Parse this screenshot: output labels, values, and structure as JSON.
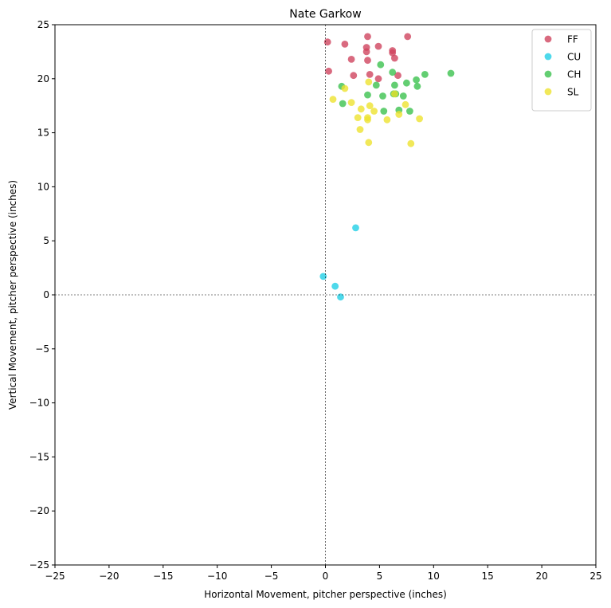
{
  "chart_data": {
    "type": "scatter",
    "title": "Nate Garkow",
    "xlabel": "Horizontal Movement, pitcher perspective (inches)",
    "ylabel": "Vertical Movement, pitcher perspective (inches)",
    "xlim": [
      -25,
      25
    ],
    "ylim": [
      -25,
      25
    ],
    "xticks": [
      -25,
      -20,
      -15,
      -10,
      -5,
      0,
      5,
      10,
      15,
      20,
      25
    ],
    "yticks": [
      -25,
      -20,
      -15,
      -10,
      -5,
      0,
      5,
      10,
      15,
      20,
      25
    ],
    "grid": false,
    "reference_lines": {
      "x": 0,
      "y": 0,
      "style": "dashed"
    },
    "legend_position": "top-right",
    "series": [
      {
        "name": "FF",
        "color": "#d0455f",
        "points": [
          [
            0.2,
            23.4
          ],
          [
            0.3,
            20.7
          ],
          [
            1.8,
            23.2
          ],
          [
            2.4,
            21.8
          ],
          [
            2.6,
            20.3
          ],
          [
            3.8,
            22.9
          ],
          [
            3.8,
            22.5
          ],
          [
            3.9,
            23.9
          ],
          [
            3.9,
            21.7
          ],
          [
            4.1,
            20.4
          ],
          [
            4.9,
            23.0
          ],
          [
            4.9,
            20.0
          ],
          [
            6.2,
            22.6
          ],
          [
            6.2,
            22.4
          ],
          [
            6.4,
            21.9
          ],
          [
            6.7,
            20.3
          ],
          [
            7.6,
            23.9
          ]
        ]
      },
      {
        "name": "CU",
        "color": "#22d0e6",
        "points": [
          [
            2.8,
            6.2
          ],
          [
            -0.2,
            1.7
          ],
          [
            0.9,
            0.8
          ],
          [
            1.4,
            -0.2
          ]
        ]
      },
      {
        "name": "CH",
        "color": "#3cc24f",
        "points": [
          [
            1.5,
            19.3
          ],
          [
            1.6,
            17.7
          ],
          [
            3.9,
            18.5
          ],
          [
            4.7,
            19.4
          ],
          [
            5.1,
            21.3
          ],
          [
            5.3,
            18.4
          ],
          [
            5.4,
            17.0
          ],
          [
            6.2,
            20.6
          ],
          [
            6.3,
            18.6
          ],
          [
            6.4,
            19.4
          ],
          [
            6.5,
            18.6
          ],
          [
            6.8,
            17.1
          ],
          [
            7.2,
            18.4
          ],
          [
            7.5,
            19.6
          ],
          [
            7.8,
            17.0
          ],
          [
            8.4,
            19.9
          ],
          [
            8.5,
            19.3
          ],
          [
            9.2,
            20.4
          ],
          [
            11.6,
            20.5
          ]
        ]
      },
      {
        "name": "SL",
        "color": "#ede230",
        "points": [
          [
            0.7,
            18.1
          ],
          [
            1.8,
            19.1
          ],
          [
            2.4,
            17.8
          ],
          [
            3.0,
            16.4
          ],
          [
            3.2,
            15.3
          ],
          [
            3.3,
            17.2
          ],
          [
            3.9,
            16.2
          ],
          [
            3.9,
            16.4
          ],
          [
            4.0,
            19.7
          ],
          [
            4.0,
            14.1
          ],
          [
            4.1,
            17.5
          ],
          [
            4.5,
            17.0
          ],
          [
            5.7,
            16.2
          ],
          [
            6.4,
            18.6
          ],
          [
            6.8,
            16.7
          ],
          [
            7.4,
            17.6
          ],
          [
            7.9,
            14.0
          ],
          [
            8.7,
            16.3
          ]
        ]
      }
    ]
  }
}
